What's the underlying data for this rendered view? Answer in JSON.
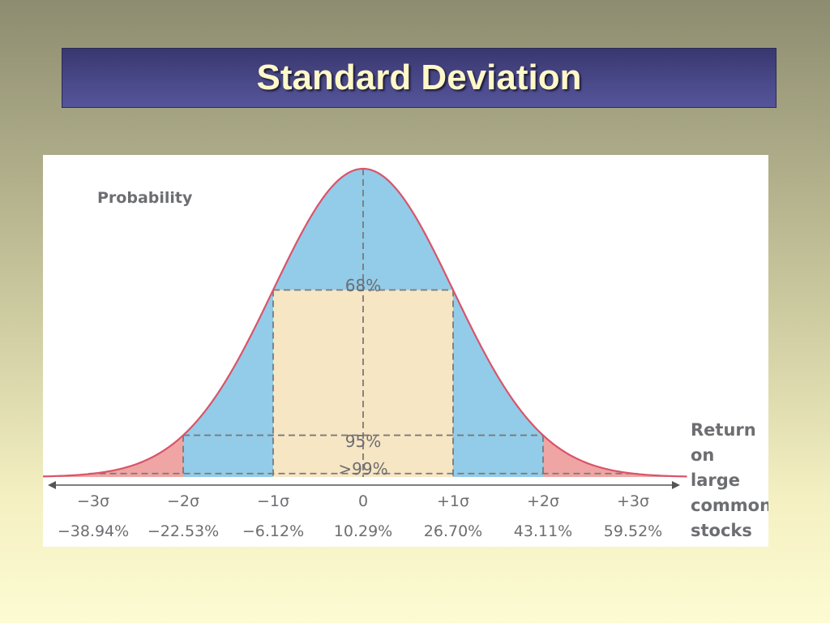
{
  "slide": {
    "title": "Standard Deviation"
  },
  "chart_data": {
    "type": "area",
    "distribution": "normal",
    "ylabel": "Probability",
    "xlabel_lines": [
      "Return",
      "on",
      "large",
      "common",
      "stocks"
    ],
    "mean": 10.29,
    "sigma": 16.41,
    "ticks": [
      {
        "sigma": -3,
        "sigma_label": "−3σ",
        "value_label": "−38.94%"
      },
      {
        "sigma": -2,
        "sigma_label": "−2σ",
        "value_label": "−22.53%"
      },
      {
        "sigma": -1,
        "sigma_label": "−1σ",
        "value_label": "−6.12%"
      },
      {
        "sigma": 0,
        "sigma_label": "0",
        "value_label": "10.29%"
      },
      {
        "sigma": 1,
        "sigma_label": "+1σ",
        "value_label": "26.70%"
      },
      {
        "sigma": 2,
        "sigma_label": "+2σ",
        "value_label": "43.11%"
      },
      {
        "sigma": 3,
        "sigma_label": "+3σ",
        "value_label": "59.52%"
      }
    ],
    "bands": [
      {
        "label": "68%",
        "from_sigma": -1,
        "to_sigma": 1
      },
      {
        "label": "95%",
        "from_sigma": -2,
        "to_sigma": 2
      },
      {
        "label": ">99%",
        "from_sigma": -3,
        "to_sigma": 3
      }
    ],
    "colors": {
      "curve": "#d9546a",
      "band_68": "#f7e6c4",
      "band_95": "#92cce9",
      "band_99": "#eea5a3",
      "dashed": "#7a7a7a",
      "axis": "#555555"
    }
  }
}
